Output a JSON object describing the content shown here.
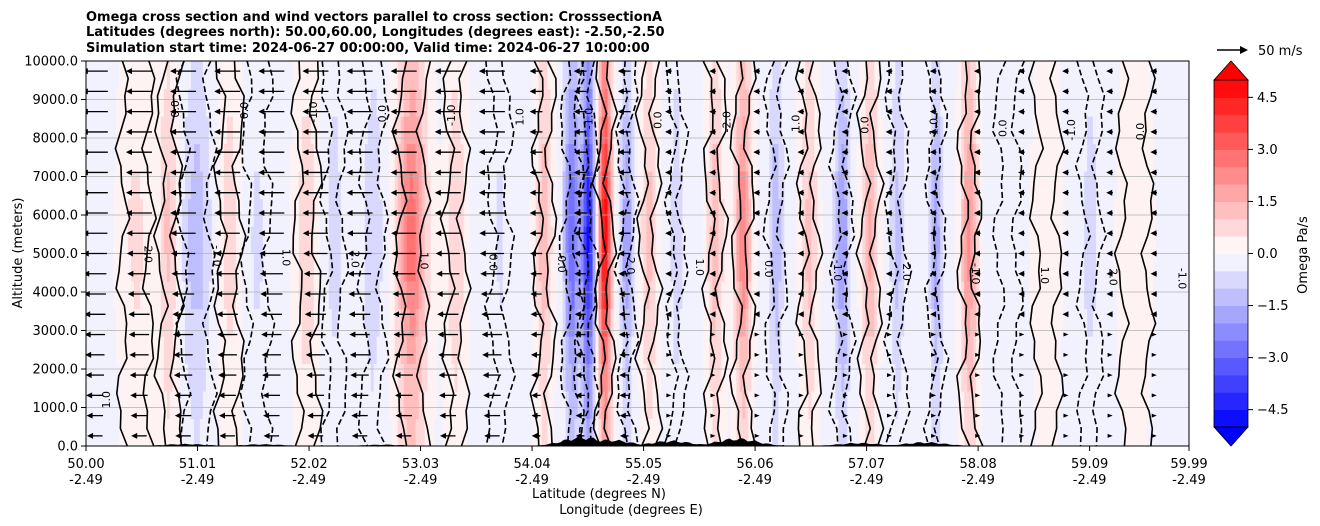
{
  "chart_data": {
    "type": "contour",
    "title_lines": [
      "Omega cross section and wind vectors parallel to cross section: CrosssectionA",
      "Latitudes (degrees north): 50.00,60.00, Longitudes (degrees east): -2.50,-2.50",
      "Simulation start time: 2024-06-27 00:00:00, Valid time: 2024-06-27 10:00:00"
    ],
    "ylabel": "Altitude (meters)",
    "xlabel_lat": "Latitude (degrees N)",
    "xlabel_lon": "Longitude (degrees E)",
    "ylim": [
      0,
      10000
    ],
    "xlim": [
      50.0,
      59.99
    ],
    "y_ticks": [
      "0.0",
      "1000.0",
      "2000.0",
      "3000.0",
      "4000.0",
      "5000.0",
      "6000.0",
      "7000.0",
      "8000.0",
      "9000.0",
      "10000.0"
    ],
    "x_ticks": [
      {
        "lat": "50.00",
        "lon": "-2.49"
      },
      {
        "lat": "51.01",
        "lon": "-2.49"
      },
      {
        "lat": "52.02",
        "lon": "-2.49"
      },
      {
        "lat": "53.03",
        "lon": "-2.49"
      },
      {
        "lat": "54.04",
        "lon": "-2.49"
      },
      {
        "lat": "55.05",
        "lon": "-2.49"
      },
      {
        "lat": "56.06",
        "lon": "-2.49"
      },
      {
        "lat": "57.07",
        "lon": "-2.49"
      },
      {
        "lat": "58.08",
        "lon": "-2.49"
      },
      {
        "lat": "59.09",
        "lon": "-2.49"
      },
      {
        "lat": "59.99",
        "lon": "-2.49"
      }
    ],
    "colorbar": {
      "label": "Omega Pa/s",
      "min": -5.0,
      "max": 5.0,
      "ticks": [
        "4.5",
        "3.0",
        "1.5",
        "0.0",
        "−1.5",
        "−3.0",
        "−4.5"
      ],
      "tick_values": [
        4.5,
        3.0,
        1.5,
        0.0,
        -1.5,
        -3.0,
        -4.5
      ],
      "colormap": "bwr"
    },
    "quiver_key": "50 m/s",
    "contour_labels": [
      "1.0",
      "2.0",
      "0.0",
      "-1.0",
      "0.0",
      "1.0",
      "-1.0",
      "2.0",
      "0.0",
      "1.0",
      "-1.0",
      "0.0",
      "1.0",
      "0.0",
      "-1.0",
      "2.0",
      "0.0",
      "1.0",
      "-2.0",
      "0.0",
      "1.0",
      "-1.0",
      "0.0",
      "2.0",
      "1.0",
      "-1.0",
      "0.0",
      "1.0",
      "-1.0",
      "2.0",
      "0.0",
      "-1.0"
    ],
    "omega_features": [
      {
        "lat": 50.45,
        "value": 0.6,
        "width": 0.1
      },
      {
        "lat": 50.75,
        "value": 1.2,
        "width": 0.06
      },
      {
        "lat": 51.0,
        "value": -1.3,
        "width": 0.1
      },
      {
        "lat": 51.3,
        "value": 0.8,
        "width": 0.07
      },
      {
        "lat": 51.55,
        "value": -0.6,
        "width": 0.08
      },
      {
        "lat": 52.0,
        "value": 0.9,
        "width": 0.07
      },
      {
        "lat": 52.25,
        "value": -0.8,
        "width": 0.06
      },
      {
        "lat": 52.6,
        "value": -1.0,
        "width": 0.07
      },
      {
        "lat": 52.95,
        "value": 2.8,
        "width": 0.09
      },
      {
        "lat": 53.35,
        "value": 1.0,
        "width": 0.06
      },
      {
        "lat": 53.75,
        "value": -0.6,
        "width": 0.06
      },
      {
        "lat": 54.15,
        "value": 1.4,
        "width": 0.05
      },
      {
        "lat": 54.4,
        "value": -3.0,
        "width": 0.05
      },
      {
        "lat": 54.55,
        "value": -4.5,
        "width": 0.04
      },
      {
        "lat": 54.7,
        "value": 4.8,
        "width": 0.04
      },
      {
        "lat": 54.9,
        "value": -2.0,
        "width": 0.04
      },
      {
        "lat": 55.1,
        "value": 1.2,
        "width": 0.05
      },
      {
        "lat": 55.35,
        "value": -1.0,
        "width": 0.04
      },
      {
        "lat": 55.7,
        "value": 1.4,
        "width": 0.05
      },
      {
        "lat": 55.95,
        "value": 2.4,
        "width": 0.05
      },
      {
        "lat": 56.25,
        "value": -1.4,
        "width": 0.05
      },
      {
        "lat": 56.55,
        "value": 1.2,
        "width": 0.05
      },
      {
        "lat": 56.85,
        "value": -2.0,
        "width": 0.05
      },
      {
        "lat": 57.1,
        "value": 1.6,
        "width": 0.05
      },
      {
        "lat": 57.35,
        "value": -1.2,
        "width": 0.05
      },
      {
        "lat": 57.7,
        "value": -1.8,
        "width": 0.04
      },
      {
        "lat": 58.0,
        "value": 2.2,
        "width": 0.05
      },
      {
        "lat": 58.35,
        "value": -0.5,
        "width": 0.07
      },
      {
        "lat": 58.7,
        "value": 0.5,
        "width": 0.08
      },
      {
        "lat": 59.1,
        "value": -0.8,
        "width": 0.06
      },
      {
        "lat": 59.5,
        "value": 0.4,
        "width": 0.1
      }
    ],
    "terrain_peaks": [
      {
        "lat": 50.9,
        "alt": 60
      },
      {
        "lat": 51.6,
        "alt": 50
      },
      {
        "lat": 52.7,
        "alt": 40
      },
      {
        "lat": 54.5,
        "alt": 260
      },
      {
        "lat": 54.75,
        "alt": 180
      },
      {
        "lat": 55.3,
        "alt": 150
      },
      {
        "lat": 55.9,
        "alt": 220
      },
      {
        "lat": 57.0,
        "alt": 90
      },
      {
        "lat": 57.6,
        "alt": 110
      }
    ]
  }
}
